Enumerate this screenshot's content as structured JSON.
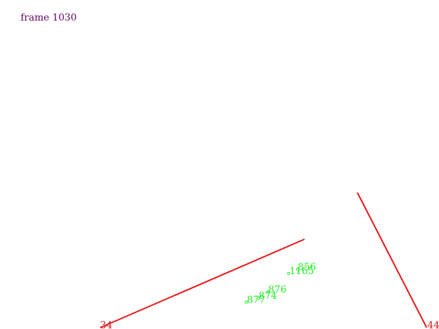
{
  "header": {
    "frame_label": "frame 1030",
    "frame_label_color": "#660066"
  },
  "colors": {
    "segment": "#ee1111",
    "segment_label": "#dd1111",
    "point": "#22ee22"
  },
  "segments": [
    {
      "label": "34"
    },
    {
      "label": ""
    },
    {
      "label": "44"
    }
  ],
  "points": [
    {
      "label": "856"
    },
    {
      "label": "1165"
    },
    {
      "label": "876"
    },
    {
      "label": "874"
    },
    {
      "label": "877"
    }
  ]
}
